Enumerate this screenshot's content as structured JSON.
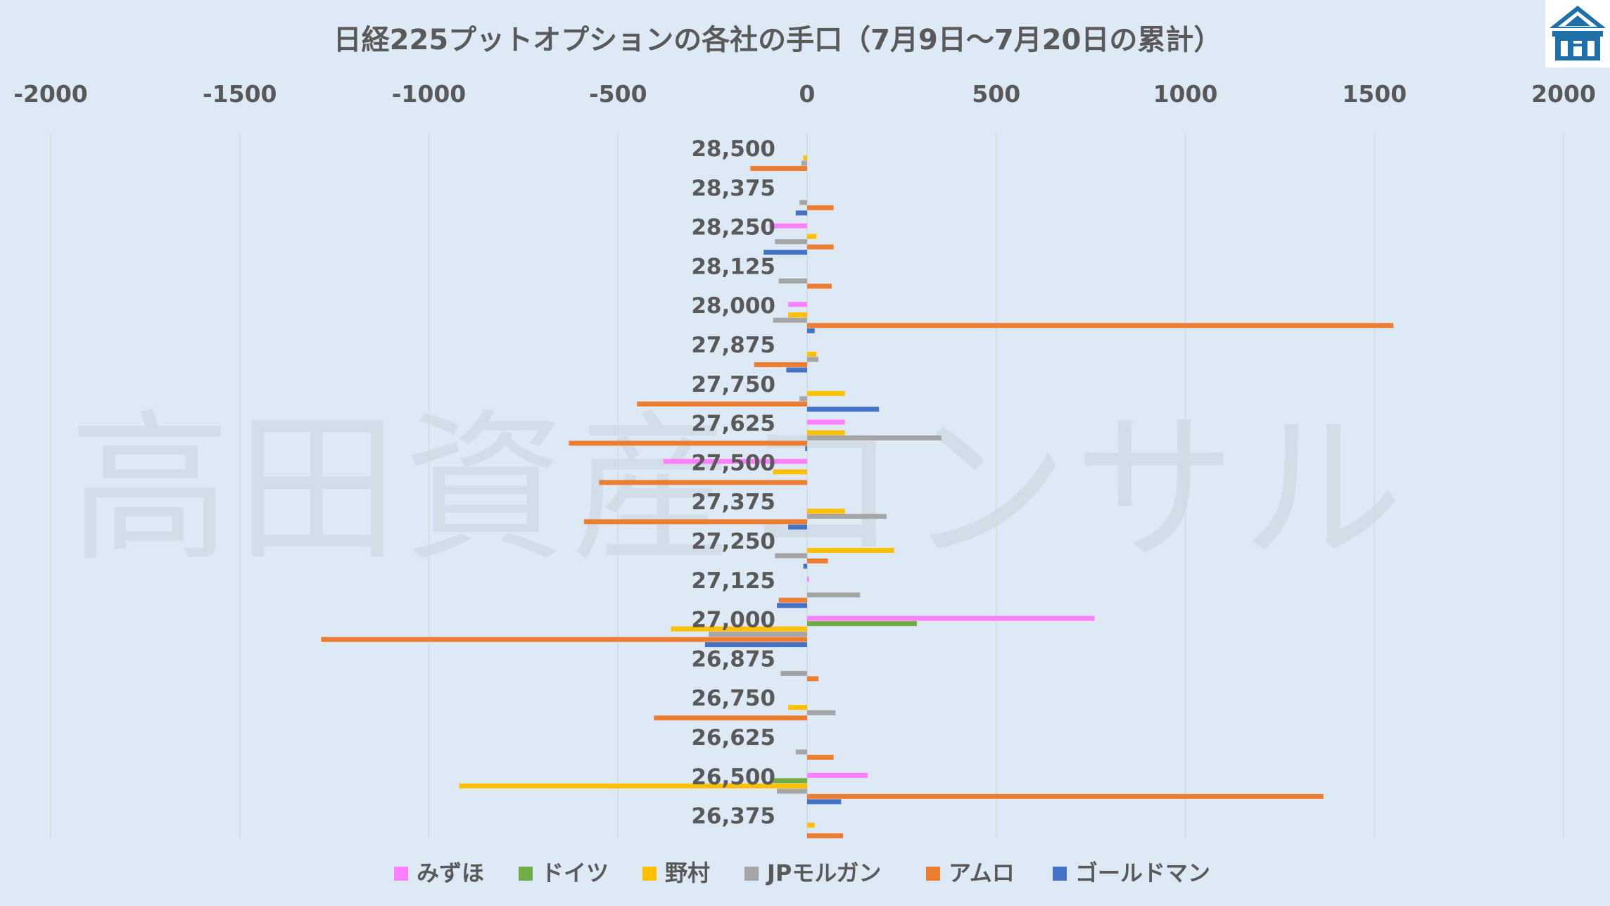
{
  "logo": {
    "icon": "house-logo-icon",
    "color": "#1f6fa8"
  },
  "watermark": "高田資産コンサル",
  "chart_data": {
    "type": "bar",
    "orientation": "horizontal",
    "title": "日経225プットオプションの各社の手口（7月9日～7月20日の累計）",
    "xlim": [
      -2000,
      2000
    ],
    "xticks": [
      "-2000",
      "-1500",
      "-1000",
      "-500",
      "0",
      "500",
      "1000",
      "1500",
      "2000"
    ],
    "xtick_values": [
      -2000,
      -1500,
      -1000,
      -500,
      0,
      500,
      1000,
      1500,
      2000
    ],
    "grid": "vertical",
    "legend": "bottom",
    "categories": [
      "28,500",
      "28,375",
      "28,250",
      "28,125",
      "28,000",
      "27,875",
      "27,750",
      "27,625",
      "27,500",
      "27,375",
      "27,250",
      "27,125",
      "27,000",
      "26,875",
      "26,750",
      "26,625",
      "26,500",
      "26,375"
    ],
    "series": [
      {
        "name": "みずほ",
        "color": "#ff80ff",
        "values": [
          0,
          0,
          -100,
          0,
          -50,
          0,
          0,
          100,
          -380,
          0,
          0,
          5,
          760,
          0,
          0,
          0,
          160,
          0
        ]
      },
      {
        "name": "ドイツ",
        "color": "#70ad47",
        "values": [
          0,
          0,
          0,
          0,
          0,
          0,
          0,
          0,
          0,
          0,
          0,
          0,
          290,
          0,
          0,
          0,
          -90,
          0
        ]
      },
      {
        "name": "野村",
        "color": "#ffc000",
        "values": [
          -10,
          0,
          25,
          0,
          -50,
          25,
          100,
          100,
          -90,
          100,
          230,
          0,
          -360,
          0,
          -50,
          0,
          -920,
          20
        ]
      },
      {
        "name": "JPモルガン",
        "color": "#a5a5a5",
        "values": [
          -15,
          -20,
          -85,
          -75,
          -90,
          30,
          -20,
          355,
          0,
          210,
          -85,
          140,
          -260,
          -70,
          75,
          -30,
          -80,
          0
        ]
      },
      {
        "name": "アムロ",
        "color": "#ed7d31",
        "values": [
          -150,
          70,
          70,
          65,
          1550,
          -140,
          -450,
          -630,
          -550,
          -590,
          55,
          -75,
          -1285,
          30,
          -405,
          70,
          1365,
          95
        ]
      },
      {
        "name": "ゴールドマン",
        "color": "#4472c4",
        "values": [
          0,
          -30,
          -115,
          0,
          20,
          -55,
          190,
          -5,
          0,
          -50,
          -10,
          -80,
          -270,
          0,
          0,
          0,
          90,
          0
        ]
      }
    ]
  }
}
